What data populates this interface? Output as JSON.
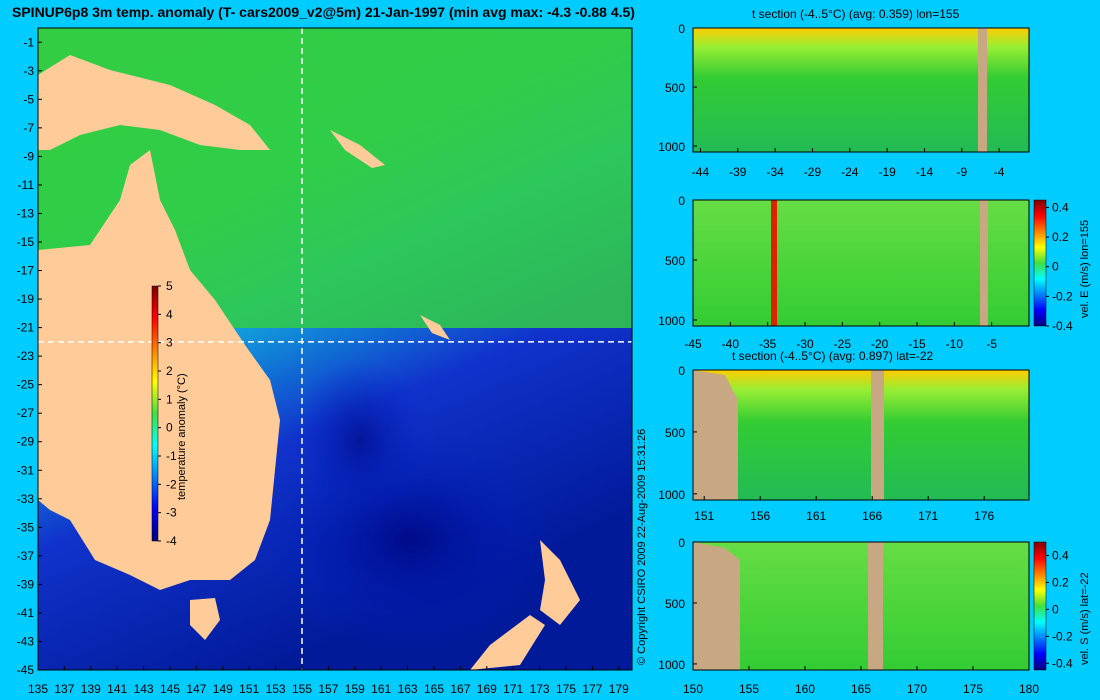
{
  "header": {
    "title": "SPINUP6p8 3m temp. anomaly (T- cars2009_v2@5m) 21-Jan-1997 (min avg max: -4.3 -0.88 4.5)",
    "copyright": "© Copyright CSIRO 2009   22-Aug-2009 15:31:26"
  },
  "colors": {
    "background": "#00ccff",
    "land": "#ffcc99",
    "section_land": "#c8a882",
    "ocean_mid": "#33cc33",
    "colormap": [
      "#00007f",
      "#0000ff",
      "#0080ff",
      "#00ffff",
      "#80ff80",
      "#ffff00",
      "#ff8000",
      "#ff0000",
      "#7f0000"
    ]
  },
  "chart_data": [
    {
      "type": "heatmap",
      "name": "map",
      "title": "SPINUP6p8 3m temp. anomaly (T- cars2009_v2@5m) 21-Jan-1997 (min avg max: -4.3 -0.88 4.5)",
      "xlim": [
        135,
        180
      ],
      "ylim": [
        -45,
        0
      ],
      "x_ticks": [
        "135",
        "137",
        "139",
        "141",
        "143",
        "145",
        "147",
        "149",
        "151",
        "153",
        "155",
        "157",
        "159",
        "161",
        "163",
        "165",
        "167",
        "169",
        "171",
        "173",
        "175",
        "177",
        "179"
      ],
      "y_ticks": [
        "-1",
        "-3",
        "-5",
        "-7",
        "-9",
        "-11",
        "-13",
        "-15",
        "-17",
        "-19",
        "-21",
        "-23",
        "-25",
        "-27",
        "-29",
        "-31",
        "-33",
        "-35",
        "-37",
        "-39",
        "-41",
        "-43",
        "-45"
      ],
      "crosshair_lon": 155,
      "crosshair_lat": -22,
      "colorbar": {
        "label": "temperature anomaly (°C)",
        "range": [
          -4,
          5
        ],
        "ticks": [
          "5",
          "4",
          "3",
          "2",
          "1",
          "0",
          "-1",
          "-2",
          "-3",
          "-4"
        ]
      },
      "stats": {
        "min": -4.3,
        "avg": -0.88,
        "max": 4.5
      }
    },
    {
      "type": "heatmap",
      "name": "t-section-lon",
      "title": "t section (-4..5°C) (avg: 0.359) lon=155",
      "xlim": [
        -45,
        0
      ],
      "ylim": [
        1050,
        0
      ],
      "x_ticks": [
        "-44",
        "-39",
        "-34",
        "-29",
        "-24",
        "-19",
        "-14",
        "-9",
        "-4"
      ],
      "y_ticks": [
        "0",
        "500",
        "1000"
      ]
    },
    {
      "type": "heatmap",
      "name": "vel-e-section",
      "title": "",
      "xlim": [
        -45,
        0
      ],
      "ylim": [
        1050,
        0
      ],
      "x_ticks": [
        "-45",
        "-40",
        "-35",
        "-30",
        "-25",
        "-20",
        "-15",
        "-10",
        "-5"
      ],
      "y_ticks": [
        "0",
        "500",
        "1000"
      ],
      "colorbar": {
        "label": "vel. E (m/s) lon=155",
        "range": [
          -0.4,
          0.45
        ],
        "ticks": [
          "0.4",
          "0.2",
          "0",
          "-0.2",
          "-0.4"
        ]
      }
    },
    {
      "type": "heatmap",
      "name": "t-section-lat",
      "title": "t section (-4..5°C) (avg: 0.897) lat=-22",
      "xlim": [
        150,
        180
      ],
      "ylim": [
        1050,
        0
      ],
      "x_ticks": [
        "151",
        "156",
        "161",
        "166",
        "171",
        "176"
      ],
      "y_ticks": [
        "0",
        "500",
        "1000"
      ]
    },
    {
      "type": "heatmap",
      "name": "vel-s-section",
      "title": "",
      "xlim": [
        150,
        180
      ],
      "ylim": [
        1050,
        0
      ],
      "x_ticks": [
        "150",
        "155",
        "160",
        "165",
        "170",
        "175",
        "180"
      ],
      "y_ticks": [
        "0",
        "500",
        "1000"
      ],
      "colorbar": {
        "label": "vel. S (m/s) lat=-22",
        "range": [
          -0.45,
          0.5
        ],
        "ticks": [
          "0.4",
          "0.2",
          "0",
          "-0.2",
          "-0.4"
        ]
      }
    }
  ]
}
